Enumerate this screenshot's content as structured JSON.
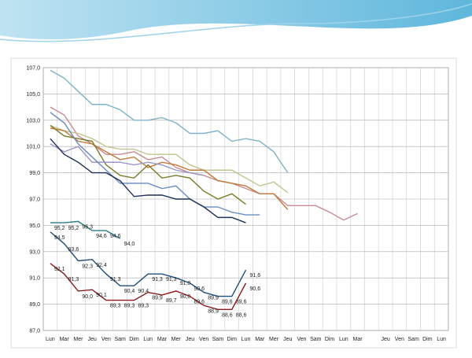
{
  "chart_data": {
    "type": "line",
    "categories": [
      "Lun",
      "Mar",
      "Mer",
      "Jeu",
      "Ven",
      "Sam",
      "Dim",
      "Lun",
      "Mar",
      "Mer",
      "Jeu",
      "Ven",
      "Sam",
      "Dim",
      "Lun",
      "Mar",
      "Mer",
      "Jeu",
      "Ven",
      "Sam",
      "Dim",
      "Lun",
      "Mar",
      null,
      "Jeu",
      "Ven",
      "Sam",
      "Dim",
      "Lun"
    ],
    "ylim": [
      87,
      107
    ],
    "yticks": [
      {
        "value": 87,
        "label": "87,0"
      },
      {
        "value": 89,
        "label": "89,0"
      },
      {
        "value": 91,
        "label": "91,0"
      },
      {
        "value": 93,
        "label": "93,0"
      },
      {
        "value": 95,
        "label": "95,0"
      },
      {
        "value": 97,
        "label": "97,0"
      },
      {
        "value": 99,
        "label": "99,0"
      },
      {
        "value": 101,
        "label": "101,0"
      },
      {
        "value": 103,
        "label": "103,0"
      },
      {
        "value": 105,
        "label": "105,0"
      },
      {
        "value": 107,
        "label": "107,0"
      }
    ],
    "grid": true,
    "series": [
      {
        "color": "#7fb3c8",
        "values": [
          106.8,
          106.2,
          105.2,
          104.2,
          104.2,
          103.8,
          103.0,
          103.0,
          103.2,
          102.8,
          102.0,
          102.0,
          102.2,
          101.4,
          101.6,
          101.4,
          100.6,
          99.0,
          null,
          null,
          null,
          null,
          null,
          null,
          null,
          null,
          null,
          null,
          null
        ]
      },
      {
        "color": "#c88a92",
        "values": [
          104.0,
          103.4,
          101.8,
          101.2,
          100.4,
          100.4,
          100.6,
          100.0,
          100.2,
          99.4,
          99.0,
          98.8,
          98.4,
          98.2,
          97.8,
          97.4,
          97.4,
          96.5,
          96.5,
          96.5,
          96.0,
          95.4,
          95.9,
          null,
          null,
          null,
          null,
          null,
          null
        ]
      },
      {
        "color": "#c3c48e",
        "values": [
          102.6,
          102.2,
          102.0,
          101.6,
          101.0,
          100.8,
          100.8,
          100.4,
          100.4,
          100.4,
          99.6,
          99.2,
          99.2,
          99.2,
          98.6,
          98.0,
          98.3,
          97.5,
          null,
          null,
          null,
          null,
          null,
          null,
          null,
          null,
          null,
          null,
          null
        ]
      },
      {
        "color": "#c07a3a",
        "values": [
          102.4,
          102.2,
          101.4,
          101.2,
          100.6,
          100.0,
          100.2,
          99.4,
          99.8,
          99.6,
          99.2,
          99.2,
          98.4,
          98.2,
          98.0,
          97.4,
          97.4,
          96.2,
          null,
          null,
          null,
          null,
          null,
          null,
          null,
          null,
          null,
          null,
          null
        ]
      },
      {
        "color": "#7a7a2a",
        "values": [
          102.6,
          101.8,
          101.6,
          101.4,
          99.6,
          98.8,
          98.6,
          99.6,
          98.6,
          98.8,
          98.6,
          97.6,
          97.0,
          97.4,
          96.6,
          null,
          null,
          null,
          null,
          null,
          null,
          null,
          null,
          null,
          null,
          null,
          null,
          null,
          null
        ]
      },
      {
        "color": "#9a96c8",
        "values": [
          101.2,
          100.6,
          101.0,
          99.8,
          99.8,
          99.8,
          99.6,
          99.8,
          99.6,
          99.2,
          99.0,
          98.8,
          null,
          null,
          null,
          null,
          null,
          null,
          null,
          null,
          null,
          null,
          null,
          null,
          null,
          null,
          null,
          null,
          null
        ]
      },
      {
        "color": "#6a8cc0",
        "values": [
          103.6,
          102.8,
          101.2,
          100.2,
          99.2,
          98.2,
          98.2,
          98.2,
          97.8,
          98.0,
          97.0,
          96.4,
          96.4,
          96.0,
          95.8,
          95.8,
          null,
          null,
          null,
          null,
          null,
          null,
          null,
          null,
          null,
          null,
          null,
          null,
          null
        ]
      },
      {
        "color": "#1f2f5a",
        "values": [
          101.6,
          100.4,
          99.8,
          99.0,
          99.0,
          98.4,
          97.2,
          97.3,
          97.3,
          97.0,
          97.0,
          96.4,
          95.6,
          95.6,
          95.2,
          null,
          null,
          null,
          null,
          null,
          null,
          null,
          null,
          null,
          null,
          null,
          null,
          null,
          null
        ]
      },
      {
        "color": "#2a7a8a",
        "values": [
          95.2,
          95.2,
          95.3,
          94.6,
          94.6,
          94.0,
          null,
          null,
          null,
          null,
          null,
          null,
          null,
          null,
          null,
          null,
          null,
          null,
          null,
          null,
          null,
          null,
          null,
          null,
          null,
          null,
          null,
          null,
          null
        ],
        "value_labels": [
          "95,2",
          "95,2",
          "95,3",
          "94,6",
          "94,6",
          "94,0",
          null,
          null,
          null,
          null,
          null,
          null,
          null,
          null,
          null,
          null,
          null,
          null,
          null,
          null,
          null,
          null,
          null,
          null,
          null,
          null,
          null,
          null,
          null
        ]
      },
      {
        "color": "#1f4e79",
        "values": [
          94.5,
          93.6,
          92.3,
          92.4,
          91.3,
          90.4,
          90.4,
          91.3,
          91.3,
          91.0,
          90.6,
          89.9,
          89.6,
          89.6,
          91.6,
          null,
          null,
          null,
          null,
          null,
          null,
          null,
          null,
          null,
          null,
          null,
          null,
          null,
          null
        ],
        "value_labels": [
          "94,5",
          "93,6",
          "92,3",
          "92,4",
          "91,3",
          "90,4",
          "90,4",
          "91,3",
          "91,3",
          "91,0",
          "90,6",
          "89,9",
          "89,6",
          "89,6",
          "91,6",
          null,
          null,
          null,
          null,
          null,
          null,
          null,
          null,
          null,
          null,
          null,
          null,
          null,
          null
        ]
      },
      {
        "color": "#8b1a1a",
        "values": [
          92.1,
          91.3,
          90.0,
          90.1,
          89.3,
          89.3,
          89.3,
          89.9,
          89.7,
          90.0,
          89.6,
          88.9,
          88.6,
          88.6,
          90.6,
          null,
          null,
          null,
          null,
          null,
          null,
          null,
          null,
          null,
          null,
          null,
          null,
          null,
          null
        ],
        "value_labels": [
          "92,1",
          "91,3",
          "90,0",
          "90,1",
          "89,3",
          "89,3",
          "89,3",
          "89,9",
          "89,7",
          "90,0",
          "89,6",
          "88,9",
          "88,6",
          "88,6",
          "90,6",
          null,
          null,
          null,
          null,
          null,
          null,
          null,
          null,
          null,
          null,
          null,
          null,
          null,
          null
        ]
      }
    ]
  }
}
